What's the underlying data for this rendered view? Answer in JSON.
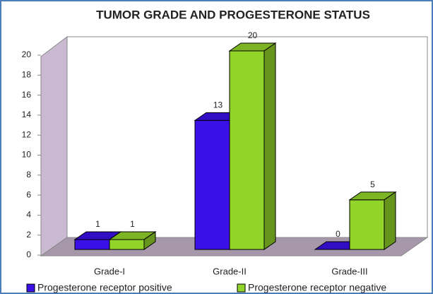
{
  "chart_data": {
    "type": "bar3d",
    "title": "TUMOR GRADE AND PROGESTERONE STATUS",
    "categories": [
      "Grade-I",
      "Grade-II",
      "Grade-III"
    ],
    "series": [
      {
        "name": "Progesterone receptor positive",
        "color": "#3a10e6",
        "values": [
          1,
          13,
          0
        ]
      },
      {
        "name": "Progesterone receptor negative",
        "color": "#92d42a",
        "values": [
          1,
          20,
          5
        ]
      }
    ],
    "ylim": [
      0,
      20
    ],
    "yticks": [
      0,
      2,
      4,
      6,
      8,
      10,
      12,
      14,
      16,
      18,
      20
    ],
    "legend": "bottom"
  }
}
